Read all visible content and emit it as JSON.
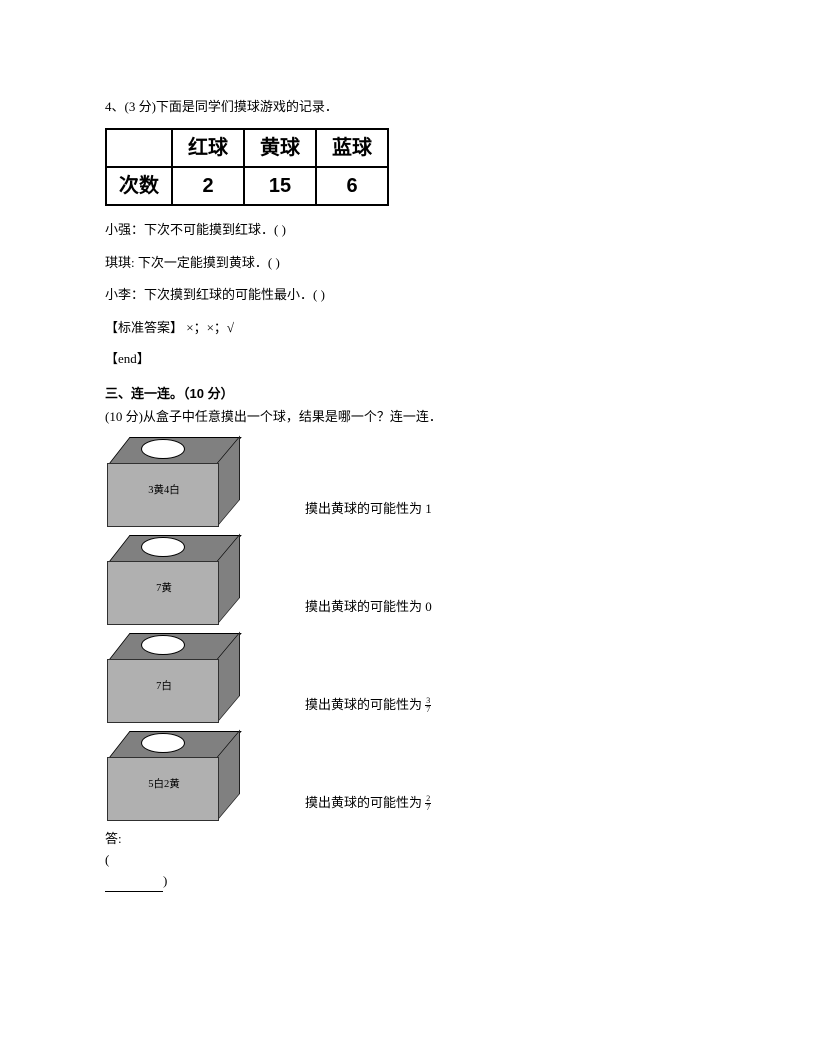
{
  "q4": {
    "heading": "4、(3 分)下面是同学们摸球游戏的记录．",
    "table": {
      "row_header": "次数",
      "columns": [
        "红球",
        "黄球",
        "蓝球"
      ],
      "values": [
        "2",
        "15",
        "6"
      ]
    },
    "s1": "小强：下次不可能摸到红球．( )",
    "s2": "琪琪: 下次一定能摸到黄球．( )",
    "s3": "小李：下次摸到红球的可能性最小．( )",
    "answer": "【标准答案】 ×；×；√",
    "end": "【end】"
  },
  "sec3": {
    "title_a": "三、连一连。（",
    "title_pts": "10 分",
    "title_b": "）",
    "intro": "(10 分)从盒子中任意摸出一个球，结果是哪一个？连一连．",
    "boxes": [
      {
        "label": "3黄4白",
        "text": "摸出黄球的可能性为 1"
      },
      {
        "label": "7黄",
        "text": "摸出黄球的可能性为 0"
      },
      {
        "label": "7白",
        "text": "摸出黄球的可能性为",
        "frac_n": "3",
        "frac_d": "7"
      },
      {
        "label": "5白2黄",
        "text": "摸出黄球的可能性为",
        "frac_n": "2",
        "frac_d": "7"
      }
    ],
    "ans_label": "答:",
    "paren_open": "(",
    "paren_close": ")"
  },
  "style": {
    "page_bg": "#ffffff",
    "text_color": "#000000",
    "table_border": "#000000",
    "box_top_color": "#808080",
    "box_front_color": "#b0b0b0",
    "box_side_color": "#808080"
  }
}
